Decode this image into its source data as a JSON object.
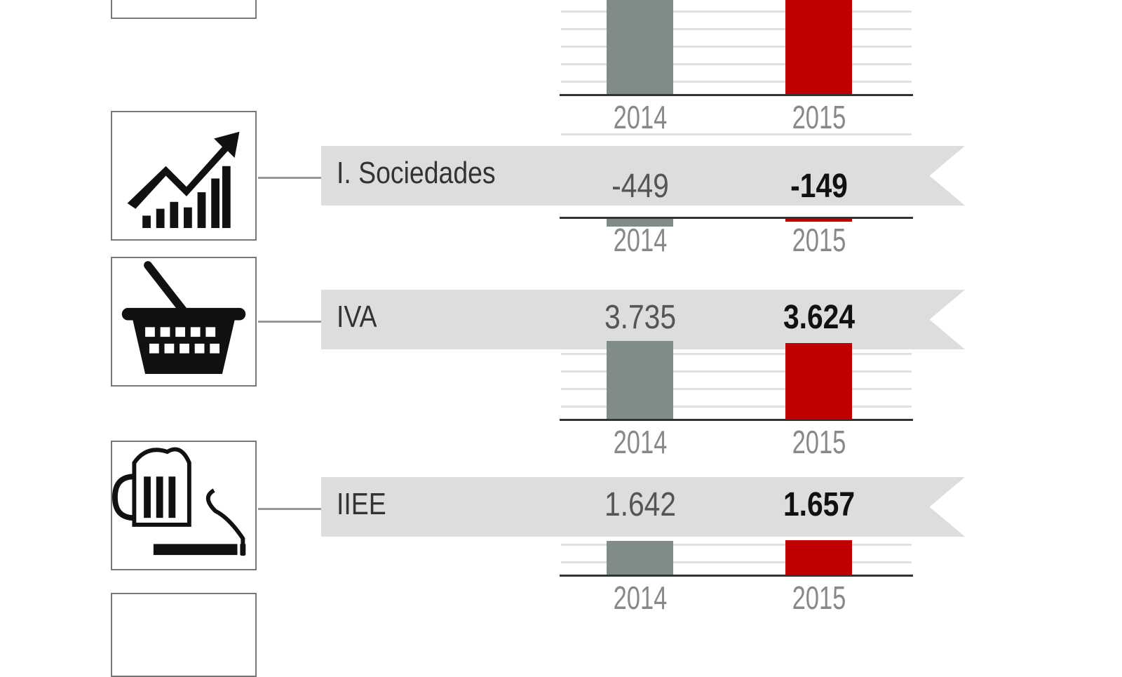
{
  "chart_data": {
    "type": "bar",
    "categories": [
      "I. Sociedades",
      "IVA",
      "IIEE"
    ],
    "series": [
      {
        "name": "2014",
        "values": [
          -449,
          3735,
          1642
        ]
      },
      {
        "name": "2015",
        "values": [
          -149,
          3624,
          1657
        ]
      }
    ],
    "value_labels": {
      "2014": [
        "-449",
        "3.735",
        "1.642"
      ],
      "2015": [
        "-149",
        "3.624",
        "1.657"
      ]
    },
    "years": [
      "2014",
      "2015"
    ],
    "colors": {
      "2014": "#7f8c8a",
      "2015": "#c00000"
    },
    "icons": [
      "rising-chart-icon",
      "shopping-basket-icon",
      "beer-cigarette-icon"
    ],
    "grid": true
  }
}
